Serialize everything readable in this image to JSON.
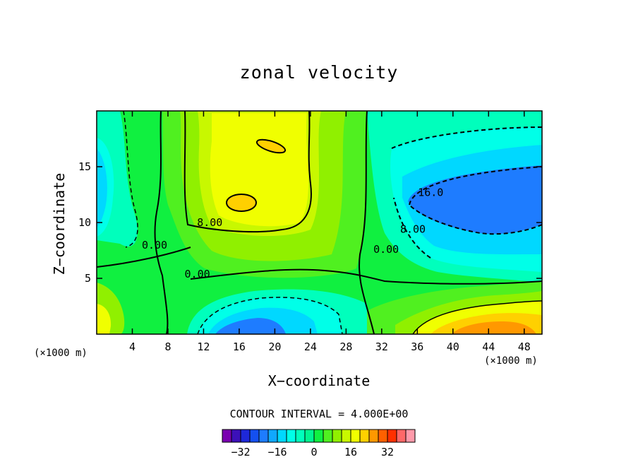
{
  "chart_data": {
    "type": "heatmap",
    "subtype": "filled-contour",
    "title": "zonal velocity",
    "xlabel": "X−coordinate",
    "ylabel": "Z−coordinate",
    "x_unit_label": "(×1000 m)",
    "y_unit_label": "(×1000 m)",
    "xlim": [
      0,
      50
    ],
    "ylim": [
      0,
      20
    ],
    "x_ticks": [
      4,
      8,
      12,
      16,
      20,
      24,
      28,
      32,
      36,
      40,
      44,
      48
    ],
    "y_ticks": [
      5,
      10,
      15
    ],
    "contour_interval_label": "CONTOUR INTERVAL = 4.000E+00",
    "contour_labels": [
      {
        "text": "8.00",
        "x": 12.7,
        "y": 9.8
      },
      {
        "text": "0.00",
        "x": 6.5,
        "y": 7.8
      },
      {
        "text": "0.00",
        "x": 11.3,
        "y": 5.2
      },
      {
        "text": "16.0",
        "x": 37.5,
        "y": 12.5
      },
      {
        "text": "8.00",
        "x": 35.5,
        "y": 9.2
      },
      {
        "text": "0.00",
        "x": 32.5,
        "y": 7.4
      }
    ],
    "colorbar": {
      "levels": [
        -36,
        -32,
        -28,
        -24,
        -20,
        -16,
        -12,
        -8,
        -4,
        0,
        4,
        8,
        12,
        16,
        20,
        24,
        28,
        32,
        36,
        40
      ],
      "colors": [
        "#7a00b0",
        "#3c10b8",
        "#1e28d8",
        "#1450f0",
        "#1e7cff",
        "#10a8ff",
        "#00d8ff",
        "#00ffe8",
        "#00ffbc",
        "#00f590",
        "#10f040",
        "#50f020",
        "#90f000",
        "#c8f800",
        "#f0ff00",
        "#ffd000",
        "#ff9800",
        "#ff6000",
        "#ff3000",
        "#ff6868",
        "#ff9aaa"
      ],
      "tick_labels": [
        "−32",
        "−16",
        "0",
        "16",
        "32"
      ],
      "tick_values": [
        -32,
        -16,
        0,
        16,
        32
      ]
    }
  }
}
